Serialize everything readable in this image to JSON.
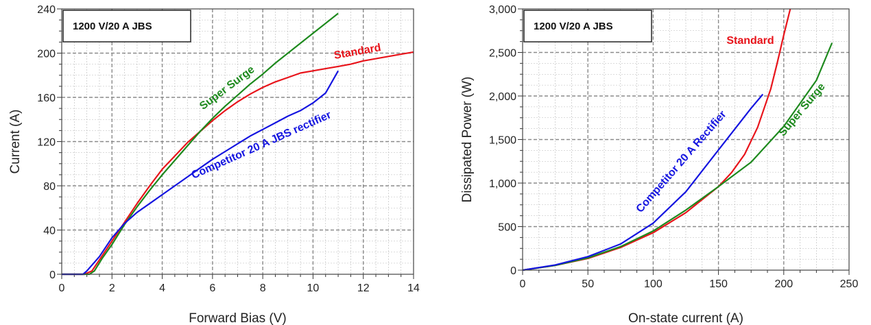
{
  "chart_data": [
    {
      "type": "line",
      "box_label": "1200 V/20 A JBS",
      "xlabel": "Forward Bias (V)",
      "ylabel": "Current (A)",
      "xlim": [
        0,
        14
      ],
      "ylim": [
        0,
        240
      ],
      "xticks": [
        "0",
        "2",
        "4",
        "6",
        "8",
        "10",
        "12",
        "14"
      ],
      "yticks": [
        "0",
        "40",
        "80",
        "120",
        "160",
        "200",
        "240"
      ],
      "grid": true,
      "series": [
        {
          "name": "Standard",
          "color": "#e8141b",
          "x": [
            0,
            0.9,
            1.2,
            1.5,
            2,
            2.5,
            3,
            3.5,
            4,
            4.5,
            5,
            5.5,
            6,
            6.5,
            7,
            7.5,
            8,
            8.5,
            9,
            9.5,
            10,
            10.5,
            11,
            11.5,
            12,
            12.5,
            13,
            13.5,
            14
          ],
          "y": [
            0,
            0,
            3,
            13,
            30,
            47,
            64,
            80,
            95,
            107,
            119,
            129,
            139,
            148,
            156,
            163,
            169,
            174,
            178,
            182,
            184,
            186,
            188,
            190,
            193,
            195,
            197,
            199,
            201
          ]
        },
        {
          "name": "Super Surge",
          "color": "#1e8a1e",
          "x": [
            0,
            1.1,
            1.3,
            1.6,
            2,
            2.5,
            3,
            3.5,
            4,
            4.5,
            5,
            5.5,
            6,
            6.5,
            7,
            7.5,
            8,
            8.5,
            9,
            9.5,
            10,
            10.5,
            11
          ],
          "y": [
            0,
            0,
            3,
            14,
            27,
            45,
            61,
            76,
            90,
            103,
            116,
            129,
            141,
            152,
            162,
            172,
            181,
            191,
            200,
            209,
            218,
            227,
            236
          ]
        },
        {
          "name": "Competitor 20 A JBS rectifier",
          "color": "#1515e0",
          "x": [
            0,
            0.85,
            1,
            1.5,
            2,
            2.5,
            3,
            3.5,
            4,
            4.5,
            5,
            5.5,
            6,
            6.5,
            7,
            7.5,
            8,
            8.5,
            9,
            9.5,
            10,
            10.5,
            11
          ],
          "y": [
            0,
            0,
            3,
            16,
            33,
            46,
            56,
            64,
            72,
            80,
            88,
            96,
            104,
            111,
            118,
            125,
            131,
            137,
            143,
            148,
            155,
            164,
            184
          ]
        }
      ]
    },
    {
      "type": "line",
      "box_label": "1200 V/20 A JBS",
      "xlabel": "On-state current (A)",
      "ylabel": "Dissipated Power (W)",
      "xlim": [
        0,
        250
      ],
      "ylim": [
        0,
        3000
      ],
      "xticks": [
        "0",
        "50",
        "100",
        "150",
        "200",
        "250"
      ],
      "yticks": [
        "0",
        "500",
        "1,000",
        "1,500",
        "2,000",
        "2,500",
        "3,000"
      ],
      "grid": true,
      "series": [
        {
          "name": "Standard",
          "color": "#e8141b",
          "x": [
            0,
            25,
            50,
            75,
            100,
            125,
            150,
            160,
            170,
            180,
            190,
            195,
            200,
            205
          ],
          "y": [
            0,
            55,
            135,
            260,
            430,
            660,
            960,
            1120,
            1330,
            1640,
            2080,
            2380,
            2700,
            3000
          ]
        },
        {
          "name": "Super Surge",
          "color": "#1e8a1e",
          "x": [
            0,
            25,
            50,
            75,
            100,
            125,
            150,
            175,
            200,
            225,
            237
          ],
          "y": [
            0,
            55,
            140,
            270,
            450,
            690,
            960,
            1240,
            1650,
            2180,
            2610
          ]
        },
        {
          "name": "Competitor 20 A Rectifier",
          "color": "#1515e0",
          "x": [
            0,
            25,
            50,
            75,
            100,
            125,
            150,
            175,
            184
          ],
          "y": [
            0,
            60,
            155,
            300,
            540,
            900,
            1380,
            1860,
            2020
          ]
        }
      ]
    }
  ]
}
